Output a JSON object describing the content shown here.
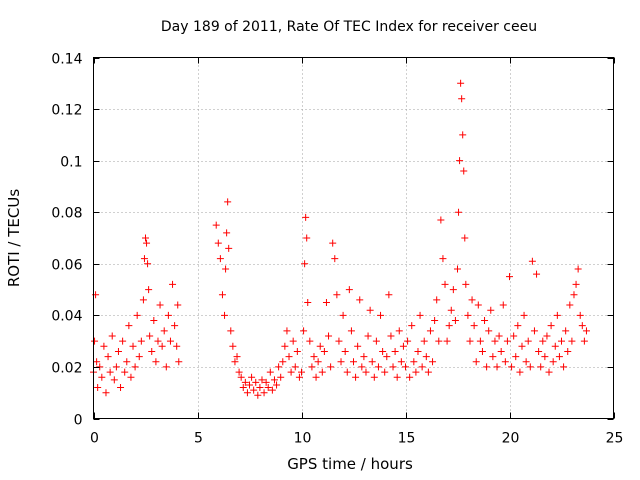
{
  "chart_data": {
    "type": "scatter",
    "title": "Day 189 of 2011, Rate Of TEC Index for receiver ceeu",
    "xlabel": "GPS time / hours",
    "ylabel": "ROTI / TECUs",
    "xlim": [
      0,
      25
    ],
    "ylim": [
      0,
      0.14
    ],
    "grid": true,
    "marker": "+",
    "color": "#ff0000",
    "x_ticks": [
      {
        "value": 0,
        "label": "0"
      },
      {
        "value": 5,
        "label": "5"
      },
      {
        "value": 10,
        "label": "10"
      },
      {
        "value": 15,
        "label": "15"
      },
      {
        "value": 20,
        "label": "20"
      },
      {
        "value": 25,
        "label": "25"
      }
    ],
    "y_ticks": [
      {
        "value": 0,
        "label": "0"
      },
      {
        "value": 0.02,
        "label": "0.02"
      },
      {
        "value": 0.04,
        "label": "0.04"
      },
      {
        "value": 0.06,
        "label": "0.06"
      },
      {
        "value": 0.08,
        "label": "0.08"
      },
      {
        "value": 0.1,
        "label": "0.1"
      },
      {
        "value": 0.12,
        "label": "0.12"
      },
      {
        "value": 0.14,
        "label": "0.14"
      }
    ],
    "series": [
      {
        "name": "ROTI",
        "x": [
          0.0,
          0.05,
          0.1,
          0.15,
          0.2,
          0.3,
          0.4,
          0.5,
          0.6,
          0.7,
          0.8,
          0.9,
          1.0,
          1.1,
          1.2,
          1.3,
          1.4,
          1.5,
          1.6,
          1.7,
          1.8,
          1.9,
          2.0,
          2.1,
          2.2,
          2.3,
          2.4,
          2.45,
          2.5,
          2.55,
          2.6,
          2.65,
          2.7,
          2.8,
          2.9,
          3.0,
          3.1,
          3.2,
          3.3,
          3.4,
          3.5,
          3.6,
          3.7,
          3.8,
          3.9,
          4.0,
          4.05,
          4.1,
          5.9,
          6.0,
          6.1,
          6.2,
          6.3,
          6.35,
          6.4,
          6.45,
          6.5,
          6.6,
          6.7,
          6.8,
          6.9,
          7.0,
          7.1,
          7.2,
          7.3,
          7.4,
          7.5,
          7.6,
          7.7,
          7.8,
          7.9,
          8.0,
          8.1,
          8.2,
          8.3,
          8.4,
          8.5,
          8.6,
          8.7,
          8.8,
          8.9,
          9.0,
          9.1,
          9.2,
          9.3,
          9.4,
          9.5,
          9.6,
          9.7,
          9.8,
          9.9,
          10.0,
          10.1,
          10.15,
          10.2,
          10.25,
          10.3,
          10.4,
          10.5,
          10.6,
          10.7,
          10.8,
          10.9,
          11.0,
          11.1,
          11.2,
          11.3,
          11.4,
          11.5,
          11.6,
          11.7,
          11.8,
          11.9,
          12.0,
          12.1,
          12.2,
          12.3,
          12.4,
          12.5,
          12.6,
          12.7,
          12.8,
          12.9,
          13.0,
          13.1,
          13.2,
          13.3,
          13.4,
          13.5,
          13.6,
          13.7,
          13.8,
          13.9,
          14.0,
          14.1,
          14.2,
          14.3,
          14.4,
          14.5,
          14.6,
          14.7,
          14.8,
          14.9,
          15.0,
          15.1,
          15.2,
          15.3,
          15.4,
          15.5,
          15.6,
          15.7,
          15.8,
          15.9,
          16.0,
          16.1,
          16.2,
          16.3,
          16.4,
          16.5,
          16.6,
          16.7,
          16.8,
          16.9,
          17.0,
          17.1,
          17.2,
          17.3,
          17.4,
          17.5,
          17.55,
          17.6,
          17.65,
          17.7,
          17.75,
          17.8,
          17.85,
          17.9,
          18.0,
          18.1,
          18.2,
          18.3,
          18.4,
          18.5,
          18.6,
          18.7,
          18.8,
          18.9,
          19.0,
          19.1,
          19.2,
          19.3,
          19.4,
          19.5,
          19.6,
          19.7,
          19.8,
          19.9,
          20.0,
          20.1,
          20.2,
          20.3,
          20.4,
          20.5,
          20.6,
          20.7,
          20.8,
          20.9,
          21.0,
          21.1,
          21.2,
          21.3,
          21.4,
          21.5,
          21.6,
          21.7,
          21.8,
          21.9,
          22.0,
          22.1,
          22.2,
          22.3,
          22.4,
          22.5,
          22.6,
          22.7,
          22.8,
          22.9,
          23.0,
          23.1,
          23.2,
          23.3,
          23.4,
          23.5,
          23.6,
          23.7
        ],
        "y": [
          0.018,
          0.03,
          0.048,
          0.022,
          0.012,
          0.02,
          0.016,
          0.028,
          0.01,
          0.024,
          0.018,
          0.032,
          0.015,
          0.02,
          0.026,
          0.012,
          0.03,
          0.018,
          0.022,
          0.036,
          0.016,
          0.028,
          0.02,
          0.04,
          0.024,
          0.03,
          0.046,
          0.062,
          0.07,
          0.068,
          0.06,
          0.05,
          0.032,
          0.026,
          0.038,
          0.022,
          0.03,
          0.044,
          0.028,
          0.034,
          0.02,
          0.04,
          0.03,
          0.052,
          0.036,
          0.028,
          0.044,
          0.022,
          0.075,
          0.068,
          0.062,
          0.048,
          0.04,
          0.058,
          0.072,
          0.084,
          0.066,
          0.034,
          0.028,
          0.022,
          0.024,
          0.018,
          0.016,
          0.012,
          0.014,
          0.01,
          0.013,
          0.016,
          0.011,
          0.014,
          0.009,
          0.012,
          0.015,
          0.01,
          0.014,
          0.012,
          0.018,
          0.011,
          0.015,
          0.013,
          0.02,
          0.016,
          0.022,
          0.028,
          0.034,
          0.024,
          0.018,
          0.03,
          0.02,
          0.026,
          0.016,
          0.018,
          0.034,
          0.06,
          0.078,
          0.07,
          0.045,
          0.03,
          0.02,
          0.024,
          0.016,
          0.022,
          0.028,
          0.018,
          0.026,
          0.045,
          0.032,
          0.02,
          0.068,
          0.062,
          0.048,
          0.03,
          0.022,
          0.04,
          0.026,
          0.018,
          0.05,
          0.034,
          0.022,
          0.016,
          0.028,
          0.046,
          0.02,
          0.024,
          0.018,
          0.032,
          0.042,
          0.022,
          0.016,
          0.03,
          0.02,
          0.04,
          0.026,
          0.018,
          0.024,
          0.048,
          0.032,
          0.02,
          0.026,
          0.016,
          0.034,
          0.022,
          0.028,
          0.02,
          0.03,
          0.016,
          0.036,
          0.022,
          0.018,
          0.026,
          0.04,
          0.02,
          0.03,
          0.024,
          0.018,
          0.034,
          0.022,
          0.038,
          0.046,
          0.03,
          0.077,
          0.062,
          0.052,
          0.03,
          0.036,
          0.042,
          0.05,
          0.038,
          0.058,
          0.08,
          0.1,
          0.13,
          0.124,
          0.11,
          0.096,
          0.07,
          0.052,
          0.04,
          0.03,
          0.046,
          0.036,
          0.022,
          0.044,
          0.03,
          0.026,
          0.038,
          0.02,
          0.034,
          0.042,
          0.024,
          0.03,
          0.02,
          0.032,
          0.026,
          0.044,
          0.022,
          0.03,
          0.055,
          0.02,
          0.032,
          0.024,
          0.036,
          0.018,
          0.028,
          0.04,
          0.022,
          0.03,
          0.02,
          0.061,
          0.034,
          0.056,
          0.026,
          0.02,
          0.03,
          0.024,
          0.032,
          0.018,
          0.036,
          0.022,
          0.028,
          0.04,
          0.024,
          0.03,
          0.02,
          0.034,
          0.026,
          0.044,
          0.03,
          0.048,
          0.052,
          0.058,
          0.04,
          0.036,
          0.03,
          0.034
        ]
      }
    ]
  }
}
